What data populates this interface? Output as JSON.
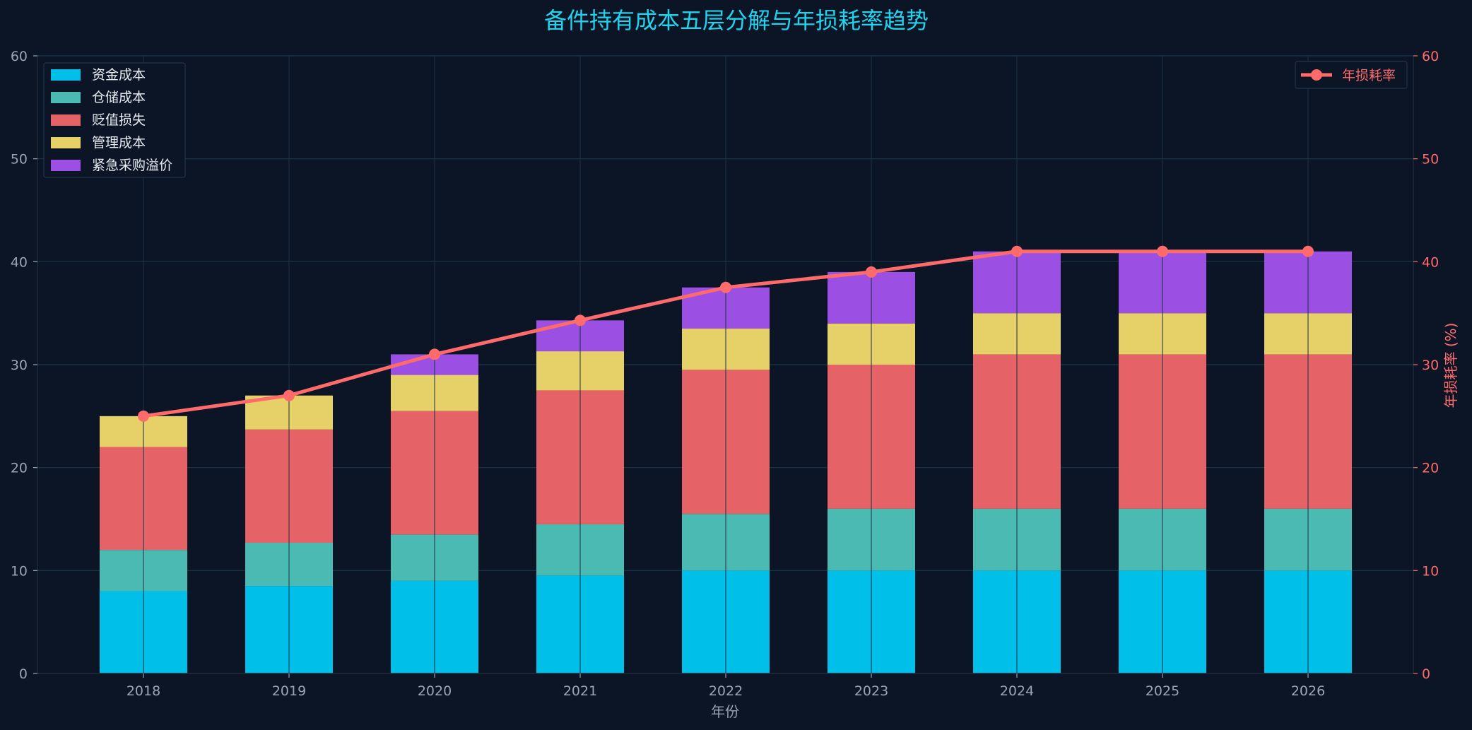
{
  "chart_data": {
    "type": "bar",
    "stacked": true,
    "title": "备件持有成本五层分解与年损耗率趋势",
    "xlabel": "年份",
    "ylabel": "",
    "y2label": "年损耗率 (%)",
    "ylim": [
      0,
      60
    ],
    "y2lim": [
      0,
      60
    ],
    "yticks": [
      "0",
      "10",
      "20",
      "30",
      "40",
      "50",
      "60"
    ],
    "y2ticks": [
      "0",
      "10",
      "20",
      "30",
      "40",
      "50",
      "60"
    ],
    "grid": true,
    "legend_position": "top-left",
    "line_legend_position": "top-right",
    "categories": [
      "2018",
      "2019",
      "2020",
      "2021",
      "2022",
      "2023",
      "2024",
      "2025",
      "2026"
    ],
    "series": [
      {
        "name": "资金成本",
        "color": "#00bfe8",
        "values": [
          8,
          8.5,
          9,
          9.5,
          10,
          10,
          10,
          10,
          10
        ]
      },
      {
        "name": "仓储成本",
        "color": "#4bbab2",
        "values": [
          4,
          4.2,
          4.5,
          5,
          5.5,
          6,
          6,
          6,
          6
        ]
      },
      {
        "name": "贬值损失",
        "color": "#e56266",
        "values": [
          10,
          11,
          12,
          13,
          14,
          14,
          15,
          15,
          15
        ]
      },
      {
        "name": "管理成本",
        "color": "#e5d167",
        "values": [
          3,
          3.3,
          3.5,
          3.8,
          4,
          4,
          4,
          4,
          4
        ]
      },
      {
        "name": "紧急采购溢价",
        "color": "#9b4fe3",
        "values": [
          0,
          0,
          2,
          3,
          4,
          5,
          6,
          6,
          6
        ]
      }
    ],
    "line_series": {
      "name": "年损耗率",
      "color": "#ff6b6b",
      "axis": "right",
      "values": [
        25,
        27,
        31,
        34.3,
        37.5,
        39,
        41,
        41,
        41
      ]
    }
  }
}
